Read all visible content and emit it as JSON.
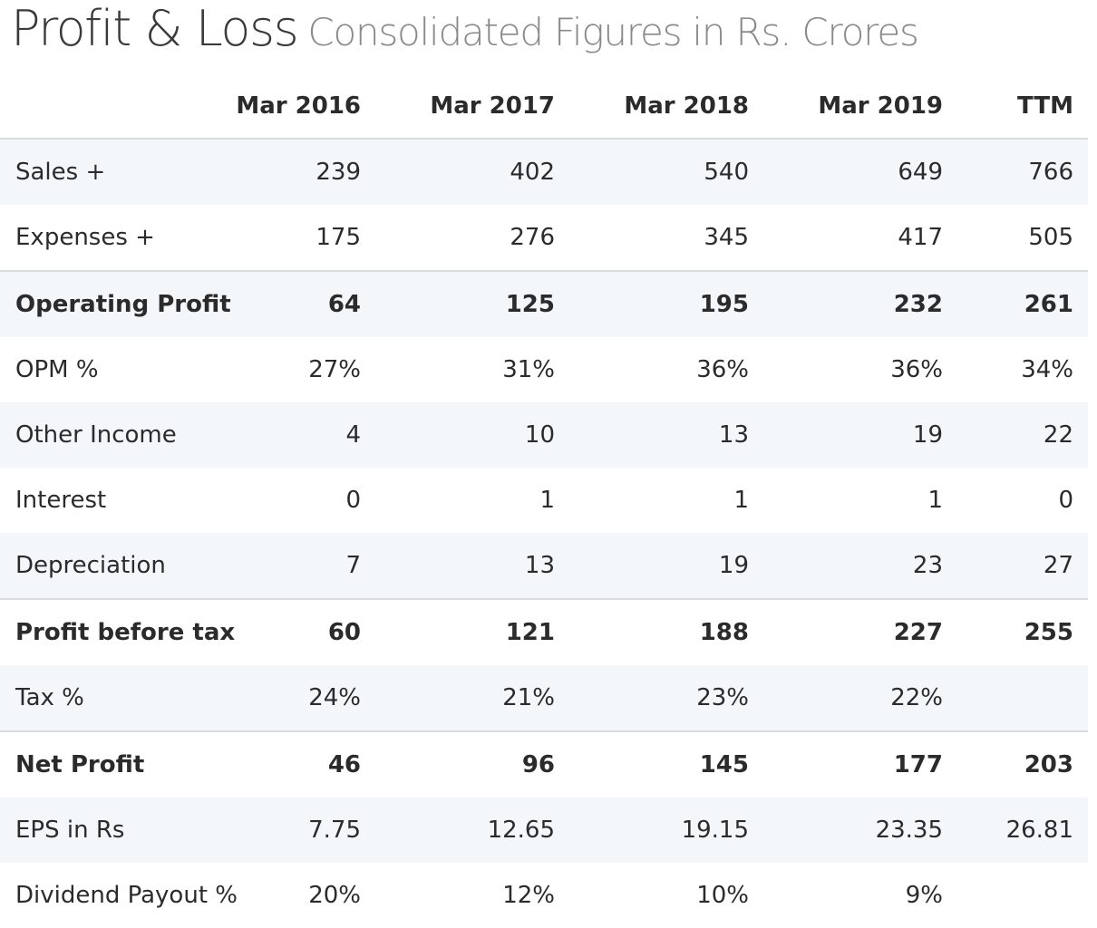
{
  "header": {
    "title": "Profit & Loss",
    "subtitle": "Consolidated Figures in Rs. Crores"
  },
  "table": {
    "columns": [
      "Mar 2016",
      "Mar 2017",
      "Mar 2018",
      "Mar 2019",
      "TTM"
    ],
    "rows": [
      {
        "label": "Sales +",
        "values": [
          "239",
          "402",
          "540",
          "649",
          "766"
        ]
      },
      {
        "label": "Expenses +",
        "values": [
          "175",
          "276",
          "345",
          "417",
          "505"
        ]
      },
      {
        "label": "Operating Profit",
        "values": [
          "64",
          "125",
          "195",
          "232",
          "261"
        ]
      },
      {
        "label": "OPM %",
        "values": [
          "27%",
          "31%",
          "36%",
          "36%",
          "34%"
        ]
      },
      {
        "label": "Other Income",
        "values": [
          "4",
          "10",
          "13",
          "19",
          "22"
        ]
      },
      {
        "label": "Interest",
        "values": [
          "0",
          "1",
          "1",
          "1",
          "0"
        ]
      },
      {
        "label": "Depreciation",
        "values": [
          "7",
          "13",
          "19",
          "23",
          "27"
        ]
      },
      {
        "label": "Profit before tax",
        "values": [
          "60",
          "121",
          "188",
          "227",
          "255"
        ]
      },
      {
        "label": "Tax %",
        "values": [
          "24%",
          "21%",
          "23%",
          "22%",
          ""
        ]
      },
      {
        "label": "Net Profit",
        "values": [
          "46",
          "96",
          "145",
          "177",
          "203"
        ]
      },
      {
        "label": "EPS in Rs",
        "values": [
          "7.75",
          "12.65",
          "19.15",
          "23.35",
          "26.81"
        ]
      },
      {
        "label": "Dividend Payout %",
        "values": [
          "20%",
          "12%",
          "10%",
          "9%",
          ""
        ]
      }
    ]
  }
}
